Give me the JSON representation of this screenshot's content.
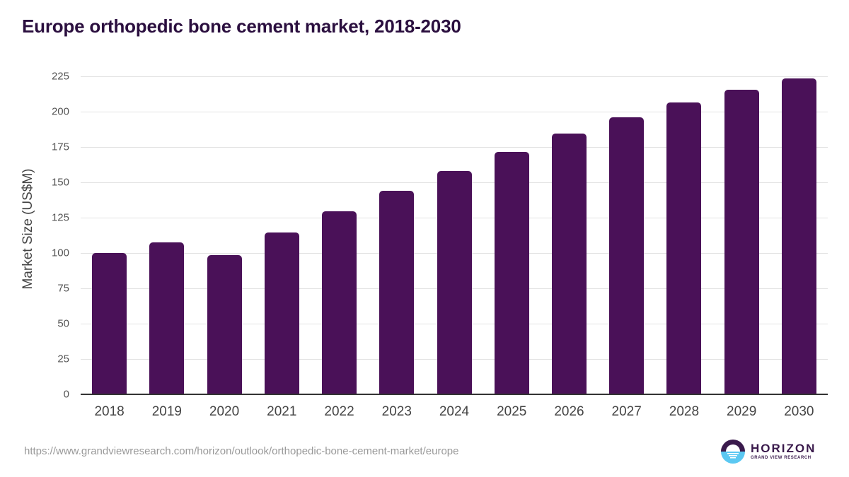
{
  "title": "Europe orthopedic bone cement market, 2018-2030",
  "source_url": "https://www.grandviewresearch.com/horizon/outlook/orthopedic-bone-cement-market/europe",
  "logo": {
    "name": "HORIZON",
    "subtitle": "GRAND VIEW RESEARCH"
  },
  "colors": {
    "bar": "#4a1158",
    "title": "#2b0f3f",
    "logo_dark": "#3a1a4c",
    "logo_light": "#5bc8f2"
  },
  "chart_data": {
    "type": "bar",
    "title": "Europe orthopedic bone cement market, 2018-2030",
    "xlabel": "",
    "ylabel": "Market Size (US$M)",
    "categories": [
      "2018",
      "2019",
      "2020",
      "2021",
      "2022",
      "2023",
      "2024",
      "2025",
      "2026",
      "2027",
      "2028",
      "2029",
      "2030"
    ],
    "values": [
      100.1,
      107.6,
      98.7,
      114.3,
      129.5,
      144.0,
      158.0,
      171.5,
      184.5,
      196.0,
      206.5,
      215.5,
      223.7
    ],
    "ylim": [
      0,
      225
    ],
    "yticks": [
      "0",
      "25",
      "50",
      "75",
      "100",
      "125",
      "150",
      "175",
      "200",
      "225"
    ],
    "grid": true,
    "legend": null
  }
}
